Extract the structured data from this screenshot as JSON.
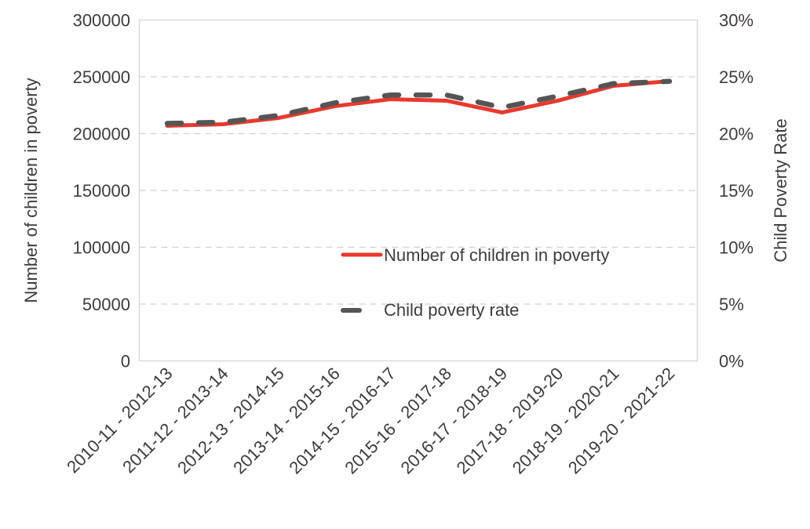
{
  "chart_data": {
    "type": "line",
    "title": "",
    "xlabel": "",
    "ylabel": "Number of children in poverty",
    "y2label": "Child Poverty Rate",
    "categories": [
      "2010-11 - 2012-13",
      "2011-12 - 2013-14",
      "2012-13 - 2014-15",
      "2013-14 - 2015-16",
      "2014-15 - 2016-17",
      "2015-16 - 2017-18",
      "2016-17 - 2018-19",
      "2017-18 - 2019-20",
      "2018-19 - 2020-21",
      "2019-20 - 2021-22"
    ],
    "series": [
      {
        "name": "Number of children in poverty",
        "axis": "left",
        "color": "#e8392e",
        "style": "solid",
        "values": [
          206900,
          208300,
          213800,
          224100,
          230300,
          229000,
          218600,
          229000,
          242100,
          246200
        ]
      },
      {
        "name": "Child poverty rate",
        "axis": "right",
        "color": "#555555",
        "style": "dashed",
        "values": [
          0.209,
          0.21,
          0.216,
          0.227,
          0.234,
          0.234,
          0.223,
          0.233,
          0.244,
          0.246
        ]
      }
    ],
    "ylim": [
      0,
      300000
    ],
    "y2lim": [
      0,
      0.3
    ],
    "yticks": [
      "0",
      "50000",
      "100000",
      "150000",
      "200000",
      "250000",
      "300000"
    ],
    "ytick_values": [
      0,
      50000,
      100000,
      150000,
      200000,
      250000,
      300000
    ],
    "y2ticks": [
      "0%",
      "5%",
      "10%",
      "15%",
      "20%",
      "25%",
      "30%"
    ],
    "grid": true,
    "legend_position": "center-right"
  }
}
